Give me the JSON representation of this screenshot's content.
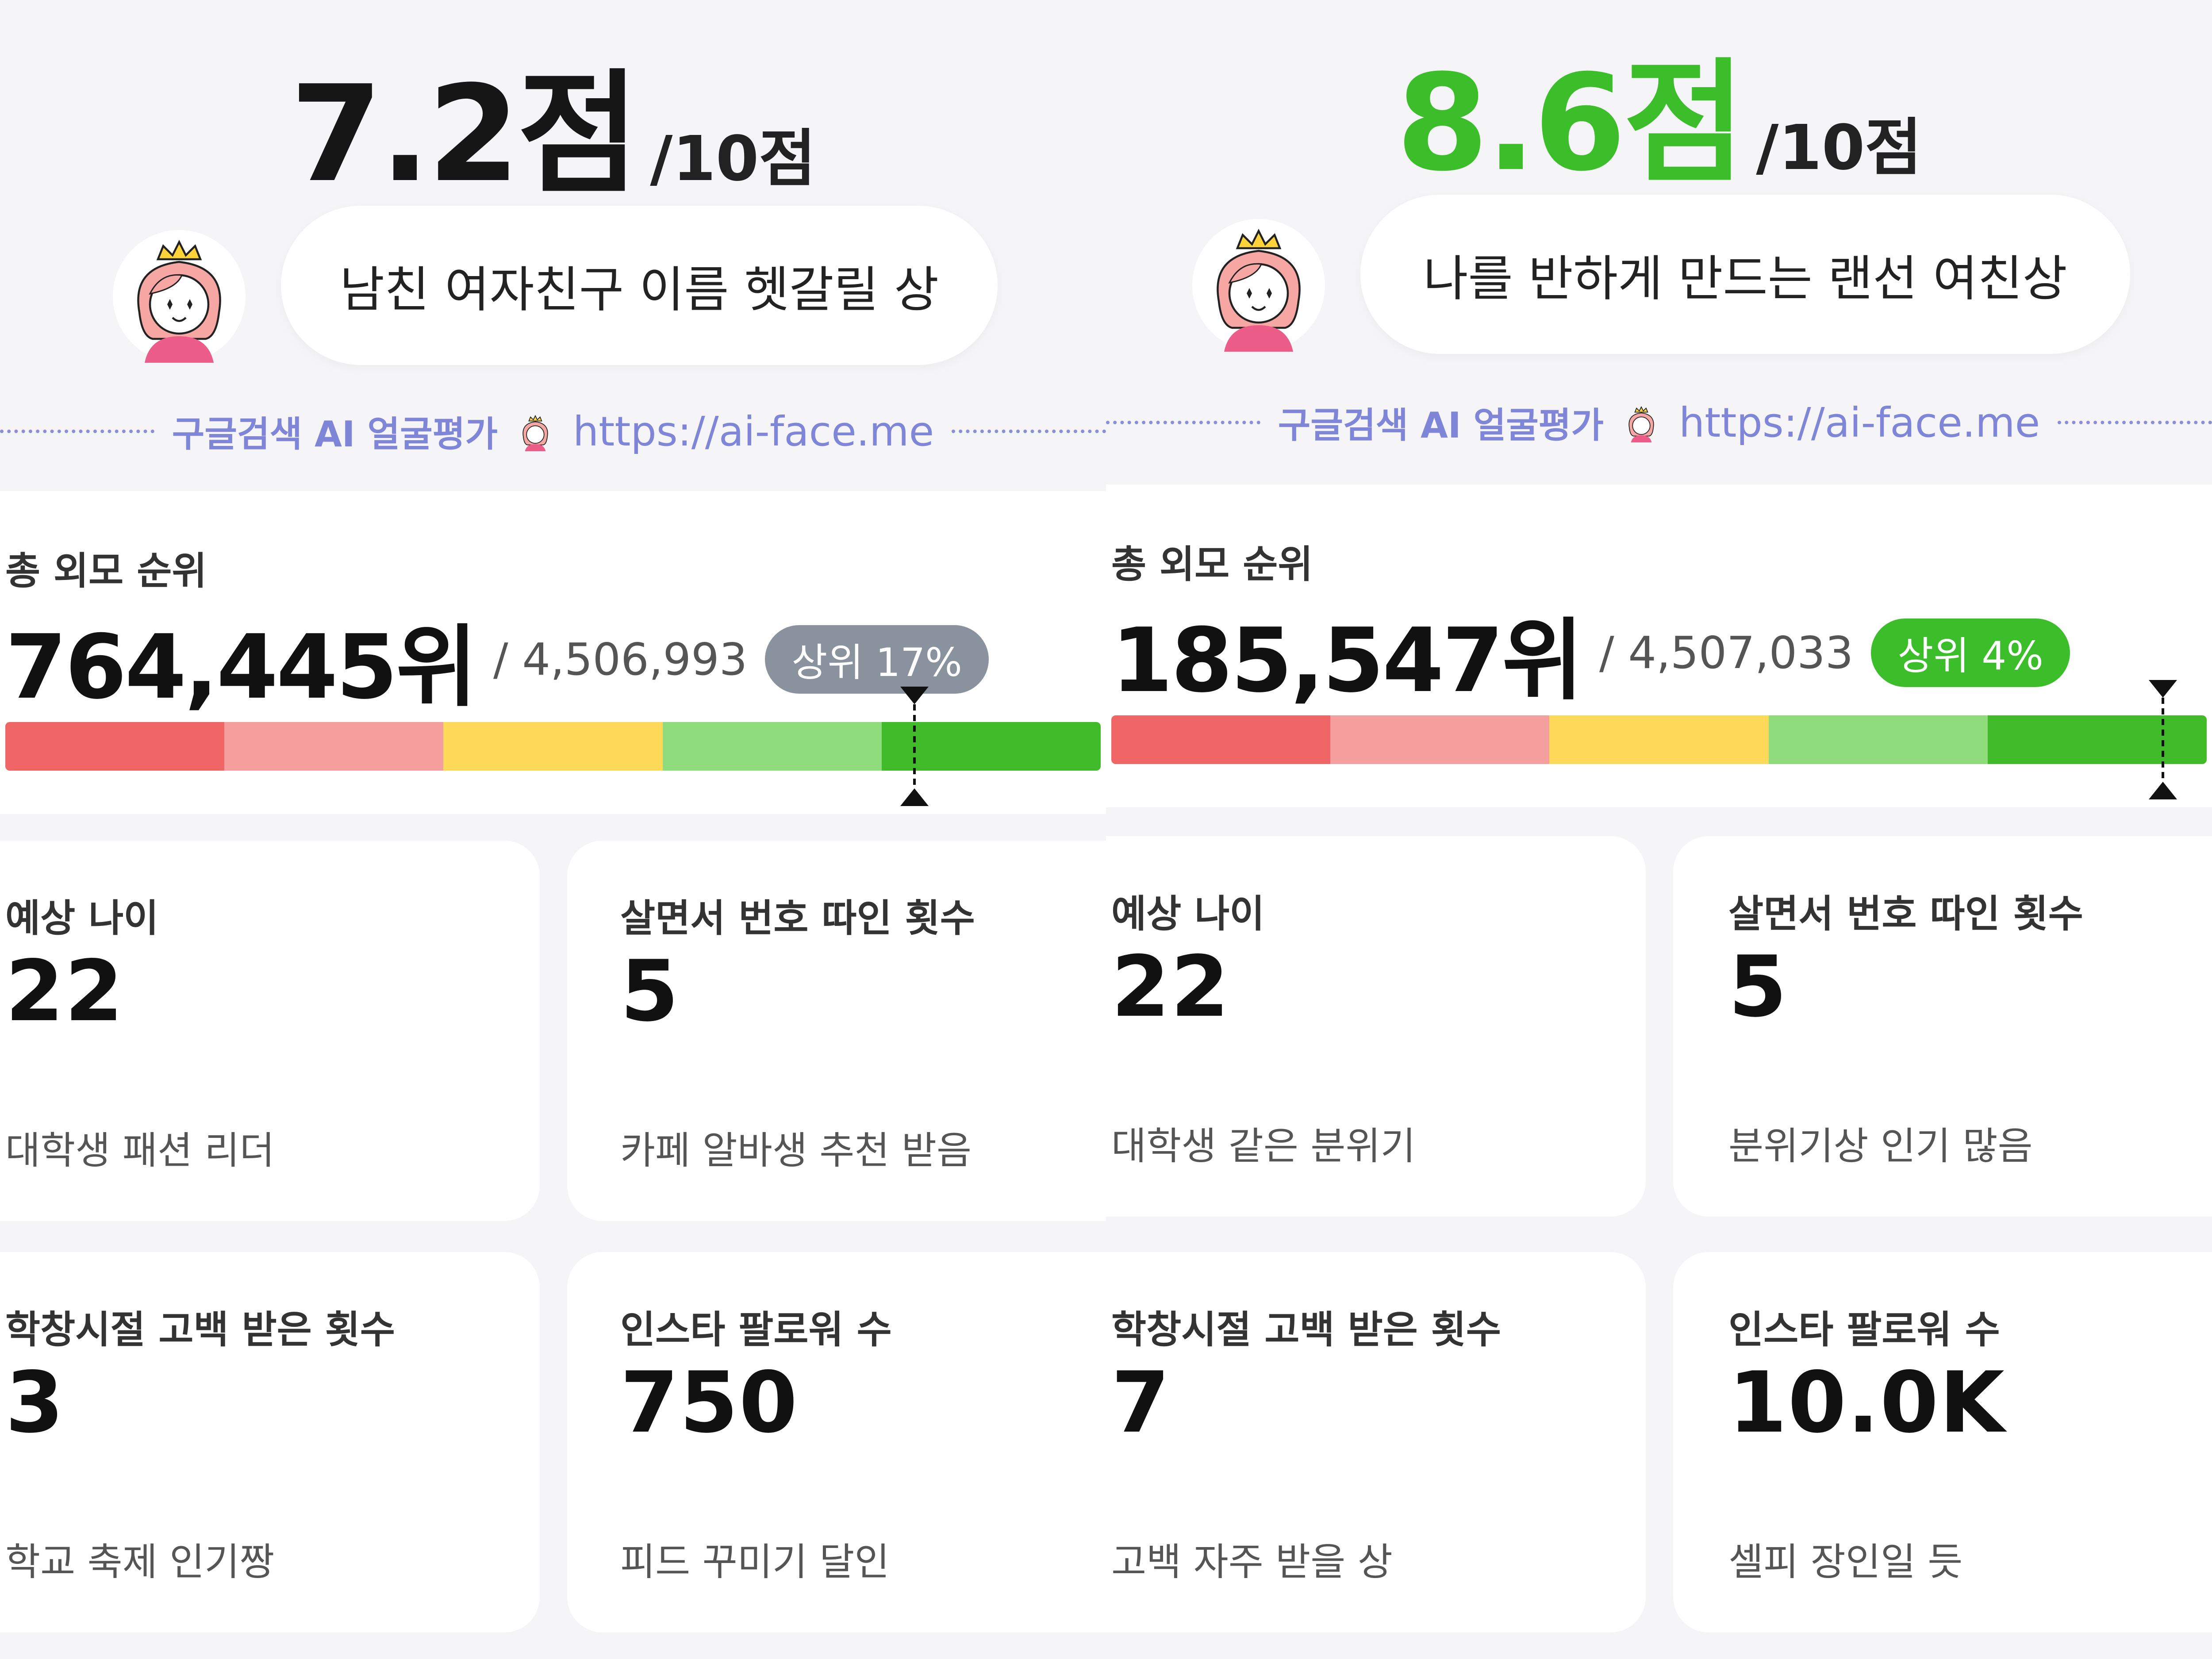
{
  "panels": [
    {
      "score": "7.2점",
      "score_out_of": "/10점",
      "comment": "남친 여자친구 이름 헷갈릴 상",
      "watermark": {
        "label": "구글검색 AI 얼굴평가",
        "url": "https://ai-face.me"
      },
      "rank": {
        "title": "총 외모 순위",
        "value": "764,445위",
        "total": "/ 4,506,993",
        "badge": "상위 17%",
        "badge_color": "#8a929e",
        "percentile_top": 17
      },
      "stats": [
        {
          "label": "예상 나이",
          "value": "22",
          "desc": "대학생 패션 리더"
        },
        {
          "label": "살면서 번호 따인 횟수",
          "value": "5",
          "desc": "카페 알바생 추천 받음"
        },
        {
          "label": "학창시절 고백 받은 횟수",
          "value": "3",
          "desc": "학교 축제 인기짱"
        },
        {
          "label": "인스타 팔로워 수",
          "value": "750",
          "desc": "피드 꾸미기 달인"
        }
      ]
    },
    {
      "score": "8.6점",
      "score_out_of": "/10점",
      "comment": "나를 반하게 만드는 랜선 여친상",
      "watermark": {
        "label": "구글검색 AI 얼굴평가",
        "url": "https://ai-face.me"
      },
      "rank": {
        "title": "총 외모 순위",
        "value": "185,547위",
        "total": "/ 4,507,033",
        "badge": "상위 4%",
        "badge_color": "#3cbe2a",
        "percentile_top": 4
      },
      "stats": [
        {
          "label": "예상 나이",
          "value": "22",
          "desc": "대학생 같은 분위기"
        },
        {
          "label": "살면서 번호 따인 횟수",
          "value": "5",
          "desc": "분위기상 인기 많음"
        },
        {
          "label": "학창시절 고백 받은 횟수",
          "value": "7",
          "desc": "고백 자주 받을 상"
        },
        {
          "label": "인스타 팔로워 수",
          "value": "10.0K",
          "desc": "셀피 장인일 듯"
        }
      ]
    }
  ],
  "rank_bar_colors": [
    "#f06565",
    "#f59f9f",
    "#ffd95a",
    "#8fdc7c",
    "#42bb2a"
  ],
  "icons": {
    "avatar": "princess-avatar-icon",
    "watermark_mini": "princess-mini-icon",
    "marker": "rank-marker-icon"
  }
}
